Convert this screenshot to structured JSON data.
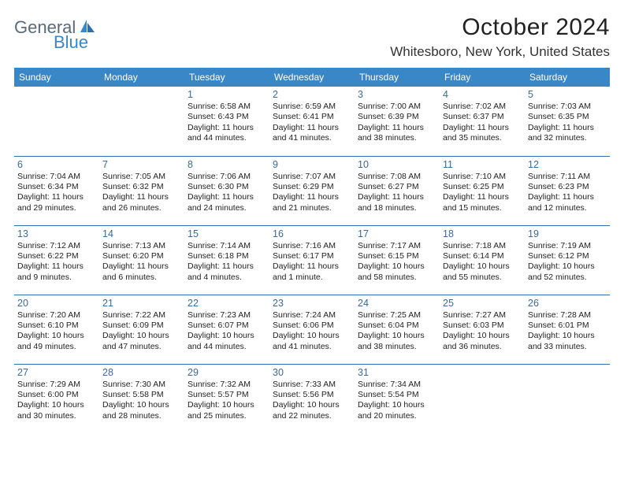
{
  "brand": {
    "general": "General",
    "blue": "Blue"
  },
  "title": "October 2024",
  "location": "Whitesboro, New York, United States",
  "colors": {
    "header_bg": "#3a87c8",
    "header_text": "#ffffff",
    "row_border": "#2f6ea8",
    "daynum_color": "#3a6a96",
    "body_text": "#222222",
    "logo_gray": "#5a6a78",
    "logo_blue": "#3a87c8",
    "background": "#ffffff"
  },
  "typography": {
    "title_fontsize": 30,
    "location_fontsize": 17,
    "header_fontsize": 12,
    "daynum_fontsize": 12.5,
    "cell_fontsize": 10.5
  },
  "day_headers": [
    "Sunday",
    "Monday",
    "Tuesday",
    "Wednesday",
    "Thursday",
    "Friday",
    "Saturday"
  ],
  "weeks": [
    [
      {
        "day": "",
        "sunrise": "",
        "sunset": "",
        "daylight": ""
      },
      {
        "day": "",
        "sunrise": "",
        "sunset": "",
        "daylight": ""
      },
      {
        "day": "1",
        "sunrise": "Sunrise: 6:58 AM",
        "sunset": "Sunset: 6:43 PM",
        "daylight": "Daylight: 11 hours and 44 minutes."
      },
      {
        "day": "2",
        "sunrise": "Sunrise: 6:59 AM",
        "sunset": "Sunset: 6:41 PM",
        "daylight": "Daylight: 11 hours and 41 minutes."
      },
      {
        "day": "3",
        "sunrise": "Sunrise: 7:00 AM",
        "sunset": "Sunset: 6:39 PM",
        "daylight": "Daylight: 11 hours and 38 minutes."
      },
      {
        "day": "4",
        "sunrise": "Sunrise: 7:02 AM",
        "sunset": "Sunset: 6:37 PM",
        "daylight": "Daylight: 11 hours and 35 minutes."
      },
      {
        "day": "5",
        "sunrise": "Sunrise: 7:03 AM",
        "sunset": "Sunset: 6:35 PM",
        "daylight": "Daylight: 11 hours and 32 minutes."
      }
    ],
    [
      {
        "day": "6",
        "sunrise": "Sunrise: 7:04 AM",
        "sunset": "Sunset: 6:34 PM",
        "daylight": "Daylight: 11 hours and 29 minutes."
      },
      {
        "day": "7",
        "sunrise": "Sunrise: 7:05 AM",
        "sunset": "Sunset: 6:32 PM",
        "daylight": "Daylight: 11 hours and 26 minutes."
      },
      {
        "day": "8",
        "sunrise": "Sunrise: 7:06 AM",
        "sunset": "Sunset: 6:30 PM",
        "daylight": "Daylight: 11 hours and 24 minutes."
      },
      {
        "day": "9",
        "sunrise": "Sunrise: 7:07 AM",
        "sunset": "Sunset: 6:29 PM",
        "daylight": "Daylight: 11 hours and 21 minutes."
      },
      {
        "day": "10",
        "sunrise": "Sunrise: 7:08 AM",
        "sunset": "Sunset: 6:27 PM",
        "daylight": "Daylight: 11 hours and 18 minutes."
      },
      {
        "day": "11",
        "sunrise": "Sunrise: 7:10 AM",
        "sunset": "Sunset: 6:25 PM",
        "daylight": "Daylight: 11 hours and 15 minutes."
      },
      {
        "day": "12",
        "sunrise": "Sunrise: 7:11 AM",
        "sunset": "Sunset: 6:23 PM",
        "daylight": "Daylight: 11 hours and 12 minutes."
      }
    ],
    [
      {
        "day": "13",
        "sunrise": "Sunrise: 7:12 AM",
        "sunset": "Sunset: 6:22 PM",
        "daylight": "Daylight: 11 hours and 9 minutes."
      },
      {
        "day": "14",
        "sunrise": "Sunrise: 7:13 AM",
        "sunset": "Sunset: 6:20 PM",
        "daylight": "Daylight: 11 hours and 6 minutes."
      },
      {
        "day": "15",
        "sunrise": "Sunrise: 7:14 AM",
        "sunset": "Sunset: 6:18 PM",
        "daylight": "Daylight: 11 hours and 4 minutes."
      },
      {
        "day": "16",
        "sunrise": "Sunrise: 7:16 AM",
        "sunset": "Sunset: 6:17 PM",
        "daylight": "Daylight: 11 hours and 1 minute."
      },
      {
        "day": "17",
        "sunrise": "Sunrise: 7:17 AM",
        "sunset": "Sunset: 6:15 PM",
        "daylight": "Daylight: 10 hours and 58 minutes."
      },
      {
        "day": "18",
        "sunrise": "Sunrise: 7:18 AM",
        "sunset": "Sunset: 6:14 PM",
        "daylight": "Daylight: 10 hours and 55 minutes."
      },
      {
        "day": "19",
        "sunrise": "Sunrise: 7:19 AM",
        "sunset": "Sunset: 6:12 PM",
        "daylight": "Daylight: 10 hours and 52 minutes."
      }
    ],
    [
      {
        "day": "20",
        "sunrise": "Sunrise: 7:20 AM",
        "sunset": "Sunset: 6:10 PM",
        "daylight": "Daylight: 10 hours and 49 minutes."
      },
      {
        "day": "21",
        "sunrise": "Sunrise: 7:22 AM",
        "sunset": "Sunset: 6:09 PM",
        "daylight": "Daylight: 10 hours and 47 minutes."
      },
      {
        "day": "22",
        "sunrise": "Sunrise: 7:23 AM",
        "sunset": "Sunset: 6:07 PM",
        "daylight": "Daylight: 10 hours and 44 minutes."
      },
      {
        "day": "23",
        "sunrise": "Sunrise: 7:24 AM",
        "sunset": "Sunset: 6:06 PM",
        "daylight": "Daylight: 10 hours and 41 minutes."
      },
      {
        "day": "24",
        "sunrise": "Sunrise: 7:25 AM",
        "sunset": "Sunset: 6:04 PM",
        "daylight": "Daylight: 10 hours and 38 minutes."
      },
      {
        "day": "25",
        "sunrise": "Sunrise: 7:27 AM",
        "sunset": "Sunset: 6:03 PM",
        "daylight": "Daylight: 10 hours and 36 minutes."
      },
      {
        "day": "26",
        "sunrise": "Sunrise: 7:28 AM",
        "sunset": "Sunset: 6:01 PM",
        "daylight": "Daylight: 10 hours and 33 minutes."
      }
    ],
    [
      {
        "day": "27",
        "sunrise": "Sunrise: 7:29 AM",
        "sunset": "Sunset: 6:00 PM",
        "daylight": "Daylight: 10 hours and 30 minutes."
      },
      {
        "day": "28",
        "sunrise": "Sunrise: 7:30 AM",
        "sunset": "Sunset: 5:58 PM",
        "daylight": "Daylight: 10 hours and 28 minutes."
      },
      {
        "day": "29",
        "sunrise": "Sunrise: 7:32 AM",
        "sunset": "Sunset: 5:57 PM",
        "daylight": "Daylight: 10 hours and 25 minutes."
      },
      {
        "day": "30",
        "sunrise": "Sunrise: 7:33 AM",
        "sunset": "Sunset: 5:56 PM",
        "daylight": "Daylight: 10 hours and 22 minutes."
      },
      {
        "day": "31",
        "sunrise": "Sunrise: 7:34 AM",
        "sunset": "Sunset: 5:54 PM",
        "daylight": "Daylight: 10 hours and 20 minutes."
      },
      {
        "day": "",
        "sunrise": "",
        "sunset": "",
        "daylight": ""
      },
      {
        "day": "",
        "sunrise": "",
        "sunset": "",
        "daylight": ""
      }
    ]
  ]
}
